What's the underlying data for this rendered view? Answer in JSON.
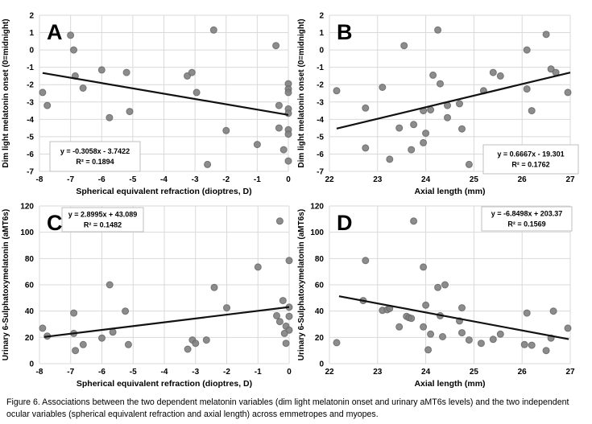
{
  "figure": {
    "caption": "Figure 6. Associations between the two dependent melatonin variables (dim light melatonin onset and urinary aMT6s levels) and the two independent ocular variables (spherical equivalent refraction and axial length) across emmetropes and myopes.",
    "colors": {
      "point_fill": "#7f7f7f",
      "point_stroke": "#666666",
      "gridline": "#d9d9d9",
      "trendline": "#111111",
      "equation_box_border": "#bfbfbf",
      "equation_box_fill": "#ffffff",
      "text": "#000000"
    }
  },
  "chart_data": [
    {
      "type": "scatter",
      "panel_label": "A",
      "title": "",
      "xlabel": "Spherical equivalent refraction (dioptres, D)",
      "ylabel": "Dim light melatonin onset (0=midnight)",
      "xlim": [
        -8,
        0
      ],
      "xstep": 1,
      "ylim": [
        -7,
        2
      ],
      "ystep": 1,
      "grid": true,
      "equation": "y = -0.3058x - 3.7422",
      "r_squared": "R² = 0.1894",
      "equation_box_position": "bottom-left",
      "trend": {
        "slope": -0.3058,
        "intercept": -3.7422,
        "x_start": -7.9,
        "x_end": 0
      },
      "points": [
        [
          -7.9,
          -2.45
        ],
        [
          -7.75,
          -3.2
        ],
        [
          -7.0,
          0.85
        ],
        [
          -6.9,
          0.0
        ],
        [
          -6.85,
          -1.5
        ],
        [
          -6.6,
          -2.2
        ],
        [
          -6.0,
          -1.15
        ],
        [
          -5.75,
          -3.9
        ],
        [
          -5.2,
          -1.3
        ],
        [
          -5.1,
          -3.55
        ],
        [
          -3.25,
          -1.5
        ],
        [
          -3.1,
          -1.3
        ],
        [
          -2.95,
          -2.45
        ],
        [
          -2.6,
          -6.6
        ],
        [
          -2.4,
          1.15
        ],
        [
          -2.0,
          -4.65
        ],
        [
          -1.0,
          -5.45
        ],
        [
          -0.4,
          0.25
        ],
        [
          -0.3,
          -3.2
        ],
        [
          -0.3,
          -4.5
        ],
        [
          -0.15,
          -5.75
        ],
        [
          0,
          -1.95
        ],
        [
          0,
          -2.25
        ],
        [
          0,
          -2.45
        ],
        [
          0,
          -3.4
        ],
        [
          0,
          -3.65
        ],
        [
          0,
          -4.6
        ],
        [
          0,
          -4.85
        ],
        [
          0,
          -6.4
        ]
      ]
    },
    {
      "type": "scatter",
      "panel_label": "B",
      "title": "",
      "xlabel": "Axial length (mm)",
      "ylabel": "Dim light melatonin onset (0=midnight)",
      "xlim": [
        22,
        27
      ],
      "xstep": 1,
      "ylim": [
        -7,
        2
      ],
      "ystep": 1,
      "grid": true,
      "equation": "y = 0.6667x - 19.301",
      "r_squared": "R² = 0.1762",
      "equation_box_position": "bottom-right",
      "trend": {
        "slope": 0.6667,
        "intercept": -19.301,
        "x_start": 22.15,
        "x_end": 27.0
      },
      "points": [
        [
          22.15,
          -2.35
        ],
        [
          22.75,
          -3.35
        ],
        [
          22.75,
          -5.65
        ],
        [
          23.1,
          -2.15
        ],
        [
          23.25,
          -6.3
        ],
        [
          23.45,
          -4.5
        ],
        [
          23.55,
          0.25
        ],
        [
          23.7,
          -5.75
        ],
        [
          23.75,
          -4.3
        ],
        [
          23.95,
          -3.5
        ],
        [
          23.95,
          -5.35
        ],
        [
          24.0,
          -4.8
        ],
        [
          24.1,
          -3.45
        ],
        [
          24.15,
          -1.45
        ],
        [
          24.25,
          1.15
        ],
        [
          24.3,
          -1.95
        ],
        [
          24.45,
          -3.2
        ],
        [
          24.45,
          -3.9
        ],
        [
          24.7,
          -3.1
        ],
        [
          24.75,
          -4.55
        ],
        [
          24.9,
          -6.6
        ],
        [
          25.2,
          -2.35
        ],
        [
          25.4,
          -1.3
        ],
        [
          25.55,
          -1.5
        ],
        [
          26.1,
          0.0
        ],
        [
          26.1,
          -2.25
        ],
        [
          26.2,
          -3.5
        ],
        [
          26.5,
          0.9
        ],
        [
          26.6,
          -1.1
        ],
        [
          26.7,
          -1.3
        ],
        [
          26.95,
          -2.45
        ]
      ]
    },
    {
      "type": "scatter",
      "panel_label": "C",
      "title": "",
      "xlabel": "Spherical equivalent refraction (dioptres, D)",
      "ylabel": "Urinary 6-Sulphatoxymelatonin (aMT6s)",
      "xlim": [
        -8,
        0
      ],
      "xstep": 1,
      "ylim": [
        0,
        120
      ],
      "ystep": 20,
      "grid": true,
      "equation": "y = 2.8995x + 43.089",
      "r_squared": "R² = 0.1482",
      "equation_box_position": "top-left",
      "trend": {
        "slope": 2.8995,
        "intercept": 43.089,
        "x_start": -7.85,
        "x_end": 0
      },
      "points": [
        [
          -7.9,
          27
        ],
        [
          -7.75,
          21
        ],
        [
          -6.9,
          38.5
        ],
        [
          -6.9,
          23
        ],
        [
          -6.85,
          10
        ],
        [
          -6.6,
          14.5
        ],
        [
          -6.0,
          19.5
        ],
        [
          -5.75,
          60
        ],
        [
          -5.65,
          24
        ],
        [
          -5.25,
          40
        ],
        [
          -5.15,
          14.5
        ],
        [
          -3.25,
          11
        ],
        [
          -3.1,
          18
        ],
        [
          -3.0,
          15.5
        ],
        [
          -2.65,
          18
        ],
        [
          -2.4,
          58
        ],
        [
          -2.0,
          42.5
        ],
        [
          -1.0,
          73.5
        ],
        [
          -0.3,
          108.5
        ],
        [
          0,
          78.5
        ],
        [
          -0.2,
          48
        ],
        [
          0,
          43
        ],
        [
          -0.4,
          36.5
        ],
        [
          0,
          36
        ],
        [
          -0.3,
          32
        ],
        [
          -0.1,
          28.5
        ],
        [
          0,
          25.5
        ],
        [
          -0.15,
          23
        ],
        [
          -0.1,
          15.5
        ]
      ]
    },
    {
      "type": "scatter",
      "panel_label": "D",
      "title": "",
      "xlabel": "Axial length (mm)",
      "ylabel": "Urinary 6-Sulphatoxymelatonin (aMT6s)",
      "xlim": [
        22,
        27
      ],
      "xstep": 1,
      "ylim": [
        0,
        120
      ],
      "ystep": 20,
      "grid": true,
      "equation": "y = -6.8498x + 203.37",
      "r_squared": "R² = 0.1569",
      "equation_box_position": "top-right",
      "trend": {
        "slope": -6.8498,
        "intercept": 203.37,
        "x_start": 22.2,
        "x_end": 26.97
      },
      "points": [
        [
          22.15,
          16
        ],
        [
          22.7,
          48
        ],
        [
          22.75,
          78.5
        ],
        [
          23.1,
          40.5
        ],
        [
          23.2,
          41
        ],
        [
          23.25,
          42
        ],
        [
          23.45,
          28
        ],
        [
          23.6,
          36
        ],
        [
          23.65,
          35
        ],
        [
          23.7,
          34.5
        ],
        [
          23.75,
          108.5
        ],
        [
          23.95,
          73.5
        ],
        [
          23.95,
          28
        ],
        [
          24.0,
          44.5
        ],
        [
          24.05,
          10.5
        ],
        [
          24.1,
          22.5
        ],
        [
          24.25,
          58
        ],
        [
          24.3,
          36.5
        ],
        [
          24.35,
          20.5
        ],
        [
          24.4,
          60
        ],
        [
          24.7,
          32.5
        ],
        [
          24.75,
          42.5
        ],
        [
          24.75,
          23.5
        ],
        [
          24.9,
          18
        ],
        [
          25.15,
          15.5
        ],
        [
          25.4,
          18.5
        ],
        [
          25.55,
          22.5
        ],
        [
          26.05,
          14.5
        ],
        [
          26.1,
          38.5
        ],
        [
          26.2,
          14
        ],
        [
          26.5,
          10
        ],
        [
          26.6,
          19.5
        ],
        [
          26.65,
          40
        ],
        [
          26.95,
          27
        ]
      ]
    }
  ]
}
